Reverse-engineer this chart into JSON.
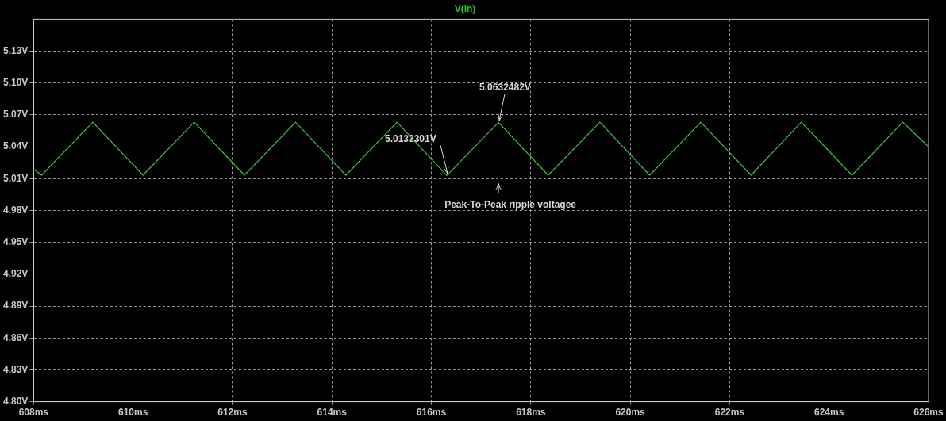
{
  "chart_data": {
    "type": "line",
    "title": "V(in)",
    "x": [
      608,
      608.16,
      609.19,
      610.2,
      611.23,
      612.24,
      613.27,
      614.28,
      615.31,
      616.31,
      617.35,
      618.35,
      619.39,
      620.39,
      621.42,
      622.43,
      623.44,
      624.46,
      625.48,
      626
    ],
    "series": [
      {
        "color": "#3fbf3f",
        "values": [
          5.019,
          5.0132,
          5.0632,
          5.0132,
          5.0632,
          5.0132,
          5.0632,
          5.0132,
          5.0632,
          5.013,
          5.063,
          5.0132,
          5.0632,
          5.0132,
          5.0632,
          5.0132,
          5.0632,
          5.0132,
          5.0632,
          5.04
        ]
      }
    ],
    "xlim": [
      608,
      626
    ],
    "xticks": [
      {
        "value": 608,
        "label": "608ms"
      },
      {
        "value": 610,
        "label": "610ms"
      },
      {
        "value": 612,
        "label": "612ms"
      },
      {
        "value": 614,
        "label": "614ms"
      },
      {
        "value": 616,
        "label": "616ms"
      },
      {
        "value": 618,
        "label": "618ms"
      },
      {
        "value": 620,
        "label": "620ms"
      },
      {
        "value": 622,
        "label": "622ms"
      },
      {
        "value": 624,
        "label": "624ms"
      },
      {
        "value": 626,
        "label": "626ms"
      }
    ],
    "ylim": [
      4.8,
      5.16
    ],
    "yticks": [
      {
        "value": 4.8,
        "label": "4.80V"
      },
      {
        "value": 4.83,
        "label": "4.83V"
      },
      {
        "value": 4.86,
        "label": "4.86V"
      },
      {
        "value": 4.89,
        "label": "4.89V"
      },
      {
        "value": 4.92,
        "label": "4.92V"
      },
      {
        "value": 4.95,
        "label": "4.95V"
      },
      {
        "value": 4.98,
        "label": "4.98V"
      },
      {
        "value": 5.01,
        "label": "5.01V"
      },
      {
        "value": 5.04,
        "label": "5.04V"
      },
      {
        "value": 5.07,
        "label": "5.07V"
      },
      {
        "value": 5.1,
        "label": "5.10V"
      },
      {
        "value": 5.13,
        "label": "5.13V"
      }
    ],
    "annotations": [
      {
        "text": "5.0632482V",
        "x": 617.35,
        "y": 5.0632482
      },
      {
        "text": "5.0132301V",
        "x": 616.31,
        "y": 5.0132301
      },
      "Peak-To-Peak ripple voltagee"
    ],
    "grid": true,
    "legend": false,
    "marker": "none",
    "line_style": "solid"
  }
}
